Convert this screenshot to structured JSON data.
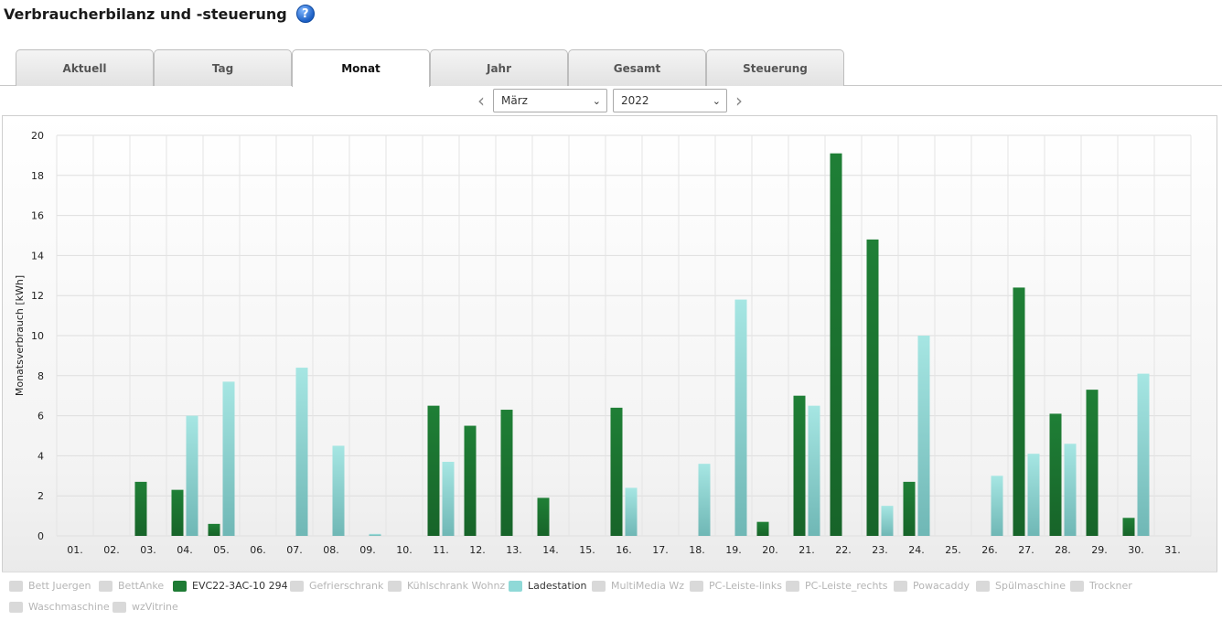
{
  "page": {
    "title": "Verbraucherbilanz und -steuerung"
  },
  "tabs": [
    {
      "label": "Aktuell",
      "active": false
    },
    {
      "label": "Tag",
      "active": false
    },
    {
      "label": "Monat",
      "active": true
    },
    {
      "label": "Jahr",
      "active": false
    },
    {
      "label": "Gesamt",
      "active": false
    },
    {
      "label": "Steuerung",
      "active": false
    }
  ],
  "selectors": {
    "month": "März",
    "year": "2022"
  },
  "legend": [
    {
      "label": "Bett Juergen",
      "active": false
    },
    {
      "label": "BettAnke",
      "active": false
    },
    {
      "label": "EVC22-3AC-10 294",
      "active": true,
      "color": "#1e7b34"
    },
    {
      "label": "Gefrierschrank",
      "active": false
    },
    {
      "label": "Kühlschrank Wohnz",
      "active": false
    },
    {
      "label": "Ladestation",
      "active": true,
      "color": "#8fd9d7"
    },
    {
      "label": "MultiMedia Wz",
      "active": false
    },
    {
      "label": "PC-Leiste-links",
      "active": false
    },
    {
      "label": "PC-Leiste_rechts",
      "active": false
    },
    {
      "label": "Powacaddy",
      "active": false
    },
    {
      "label": "Spülmaschine",
      "active": false
    },
    {
      "label": "Trockner",
      "active": false
    },
    {
      "label": "Waschmaschine",
      "active": false
    },
    {
      "label": "wzVitrine",
      "active": false
    }
  ],
  "chart_data": {
    "type": "bar",
    "ylabel": "Monatsverbrauch [kWh]",
    "ylim": [
      0,
      20
    ],
    "yticks": [
      0,
      2,
      4,
      6,
      8,
      10,
      12,
      14,
      16,
      18,
      20
    ],
    "grid": true,
    "legend_position": "bottom",
    "categories": [
      "01.",
      "02.",
      "03.",
      "04.",
      "05.",
      "06.",
      "07.",
      "08.",
      "09.",
      "10.",
      "11.",
      "12.",
      "13.",
      "14.",
      "15.",
      "16.",
      "17.",
      "18.",
      "19.",
      "20.",
      "21.",
      "22.",
      "23.",
      "24.",
      "25.",
      "26.",
      "27.",
      "28.",
      "29.",
      "30.",
      "31."
    ],
    "series": [
      {
        "name": "EVC22-3AC-10 294",
        "color": "#1e7b34",
        "values": [
          0,
          0,
          2.7,
          2.3,
          0.6,
          0,
          0,
          0,
          0,
          0,
          6.5,
          5.5,
          6.3,
          1.9,
          0,
          6.4,
          0,
          0,
          0,
          0.7,
          7.0,
          19.1,
          14.8,
          2.7,
          0,
          0,
          12.4,
          6.1,
          7.3,
          0.9,
          0
        ]
      },
      {
        "name": "Ladestation",
        "color": "#8fd9d7",
        "values": [
          0,
          0,
          0,
          6.0,
          7.7,
          0,
          8.4,
          4.5,
          0.1,
          0,
          3.7,
          0,
          0,
          0,
          0,
          2.4,
          0,
          3.6,
          11.8,
          0,
          6.5,
          0,
          1.5,
          10.0,
          0,
          3.0,
          4.1,
          4.6,
          0,
          8.1,
          0
        ]
      }
    ]
  }
}
